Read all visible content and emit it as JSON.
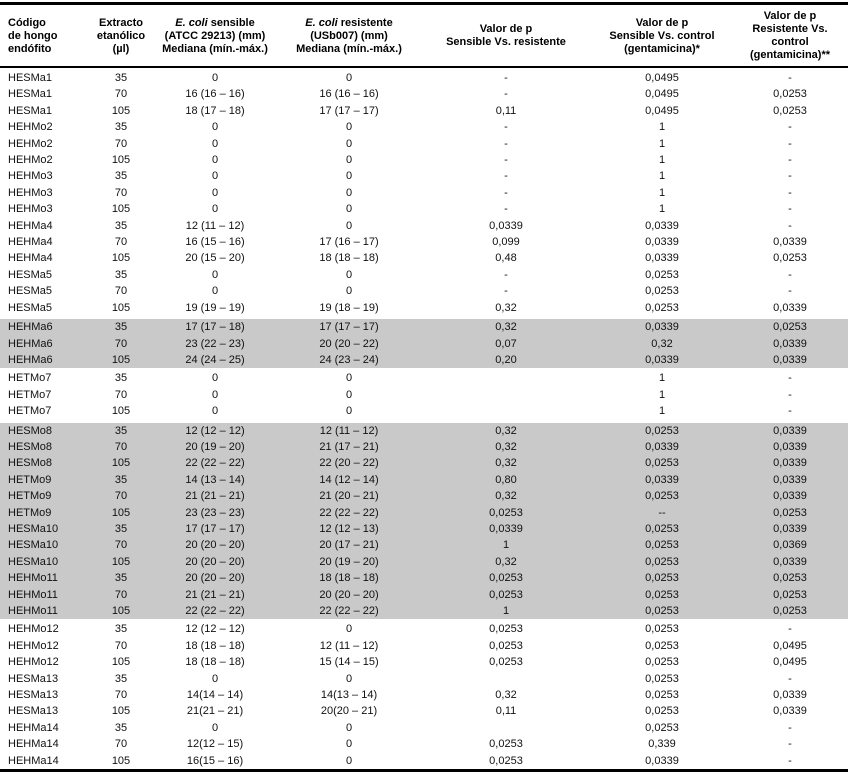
{
  "colors": {
    "shaded_row": "#c9c9c9",
    "border": "#000000",
    "text": "#000000"
  },
  "table": {
    "header": {
      "col1": {
        "line1": "Código",
        "line2": "de hongo",
        "line3": "endófito"
      },
      "col2": {
        "line1": "Extracto",
        "line2": "etanólico (µl)"
      },
      "col3": {
        "italic": "E. coli",
        "rest": " sensible",
        "line2": "(ATCC 29213) (mm)",
        "line3": "Mediana (mín.-máx.)"
      },
      "col4": {
        "italic": "E. coli",
        "rest": " resistente",
        "line2": "(USb007) (mm)",
        "line3": "Mediana (mín.-máx.)"
      },
      "col5": {
        "line1": "Valor de p",
        "line2": "Sensible Vs. resistente"
      },
      "col6": {
        "line1": "Valor de p",
        "line2": "Sensible Vs. control",
        "line3": "(gentamicina)*"
      },
      "col7": {
        "line1": "Valor de p",
        "line2": "Resistente Vs. control",
        "line3": "(gentamicina)**"
      }
    },
    "rows": [
      {
        "cells": [
          "HESMa1",
          "35",
          "0",
          "0",
          "-",
          "0,0495",
          "-"
        ],
        "shaded": false
      },
      {
        "cells": [
          "HESMa1",
          "70",
          "16 (16 – 16)",
          "16 (16 – 16)",
          "-",
          "0,0495",
          "0,0253"
        ],
        "shaded": false
      },
      {
        "cells": [
          "HESMa1",
          "105",
          "18 (17 – 18)",
          "17 (17 – 17)",
          "0,11",
          "0,0495",
          "0,0253"
        ],
        "shaded": false
      },
      {
        "cells": [
          "HEHMo2",
          "35",
          "0",
          "0",
          "-",
          "1",
          "-"
        ],
        "shaded": false
      },
      {
        "cells": [
          "HEHMo2",
          "70",
          "0",
          "0",
          "-",
          "1",
          "-"
        ],
        "shaded": false
      },
      {
        "cells": [
          "HEHMo2",
          "105",
          "0",
          "0",
          "-",
          "1",
          "-"
        ],
        "shaded": false
      },
      {
        "cells": [
          "HEHMo3",
          "35",
          "0",
          "0",
          "-",
          "1",
          "-"
        ],
        "shaded": false
      },
      {
        "cells": [
          "HEHMo3",
          "70",
          "0",
          "0",
          "-",
          "1",
          "-"
        ],
        "shaded": false
      },
      {
        "cells": [
          "HEHMo3",
          "105",
          "0",
          "0",
          "-",
          "1",
          "-"
        ],
        "shaded": false
      },
      {
        "cells": [
          "HEHMa4",
          "35",
          "12 (11 – 12)",
          "0",
          "0,0339",
          "0,0339",
          "-"
        ],
        "shaded": false
      },
      {
        "cells": [
          "HEHMa4",
          "70",
          "16 (15 – 16)",
          "17 (16 – 17)",
          "0,099",
          "0,0339",
          "0,0339"
        ],
        "shaded": false
      },
      {
        "cells": [
          "HEHMa4",
          "105",
          "20 (15 – 20)",
          "18 (18 – 18)",
          "0,48",
          "0,0339",
          "0,0253"
        ],
        "shaded": false
      },
      {
        "cells": [
          "HESMa5",
          "35",
          "0",
          "0",
          "-",
          "0,0253",
          "-"
        ],
        "shaded": false
      },
      {
        "cells": [
          "HESMa5",
          "70",
          "0",
          "0",
          "-",
          "0,0253",
          "-"
        ],
        "shaded": false
      },
      {
        "cells": [
          "HESMa5",
          "105",
          "19 (19 – 19)",
          "19 (18 – 19)",
          "0,32",
          "0,0253",
          "0,0339"
        ],
        "shaded": false
      },
      {
        "cells": [
          "HEHMa6",
          "35",
          "17 (17 – 18)",
          "17 (17 – 17)",
          "0,32",
          "0,0339",
          "0,0253"
        ],
        "shaded": true
      },
      {
        "cells": [
          "HEHMa6",
          "70",
          "23 (22 – 23)",
          "20 (20 – 22)",
          "0,07",
          "0,32",
          "0,0339"
        ],
        "shaded": true
      },
      {
        "cells": [
          "HEHMa6",
          "105",
          "24 (24 – 25)",
          "24 (23 – 24)",
          "0,20",
          "0,0339",
          "0,0339"
        ],
        "shaded": true
      },
      {
        "cells": [
          "HETMo7",
          "35",
          "0",
          "0",
          "",
          "1",
          "-"
        ],
        "shaded": false
      },
      {
        "cells": [
          "HETMo7",
          "70",
          "0",
          "0",
          "",
          "1",
          "-"
        ],
        "shaded": false
      },
      {
        "cells": [
          "HETMo7",
          "105",
          "0",
          "0",
          "",
          "1",
          "-"
        ],
        "shaded": false
      },
      {
        "cells": [
          "HESMo8",
          "35",
          "12 (12 – 12)",
          "12 (11 – 12)",
          "0,32",
          "0,0253",
          "0,0339"
        ],
        "shaded": true
      },
      {
        "cells": [
          "HESMo8",
          "70",
          "20 (19 – 20)",
          "21 (17 – 21)",
          "0,32",
          "0,0339",
          "0,0339"
        ],
        "shaded": true
      },
      {
        "cells": [
          "HESMo8",
          "105",
          "22 (22 – 22)",
          "22 (20 – 22)",
          "0,32",
          "0,0253",
          "0,0339"
        ],
        "shaded": true
      },
      {
        "cells": [
          "HETMo9",
          "35",
          "14 (13 – 14)",
          "14 (12 – 14)",
          "0,80",
          "0,0339",
          "0,0339"
        ],
        "shaded": true
      },
      {
        "cells": [
          "HETMo9",
          "70",
          "21 (21 – 21)",
          "21 (20 – 21)",
          "0,32",
          "0,0253",
          "0,0339"
        ],
        "shaded": true
      },
      {
        "cells": [
          "HETMo9",
          "105",
          "23 (23 – 23)",
          "22 (22 – 22)",
          "0,0253",
          "--",
          "0,0253"
        ],
        "shaded": true
      },
      {
        "cells": [
          "HESMa10",
          "35",
          "17 (17 – 17)",
          "12 (12 – 13)",
          "0,0339",
          "0,0253",
          "0,0339"
        ],
        "shaded": true
      },
      {
        "cells": [
          "HESMa10",
          "70",
          "20 (20 – 20)",
          "20 (17 – 21)",
          "1",
          "0,0253",
          "0,0369"
        ],
        "shaded": true
      },
      {
        "cells": [
          "HESMa10",
          "105",
          "20 (20 – 20)",
          "20 (19 – 20)",
          "0,32",
          "0,0253",
          "0,0339"
        ],
        "shaded": true
      },
      {
        "cells": [
          "HEHMo11",
          "35",
          "20 (20 – 20)",
          "18 (18 – 18)",
          "0,0253",
          "0,0253",
          "0,0253"
        ],
        "shaded": true
      },
      {
        "cells": [
          "HEHMo11",
          "70",
          "21 (21 – 21)",
          "20 (20 – 20)",
          "0,0253",
          "0,0253",
          "0,0253"
        ],
        "shaded": true
      },
      {
        "cells": [
          "HEHMo11",
          "105",
          "22 (22 – 22)",
          "22 (22 – 22)",
          "1",
          "0,0253",
          "0,0253"
        ],
        "shaded": true
      },
      {
        "cells": [
          "HEHMo12",
          "35",
          "12 (12 – 12)",
          "0",
          "0,0253",
          "0,0253",
          "-"
        ],
        "shaded": false
      },
      {
        "cells": [
          "HEHMo12",
          "70",
          "18 (18 – 18)",
          "12 (11 – 12)",
          "0,0253",
          "0,0253",
          "0,0495"
        ],
        "shaded": false
      },
      {
        "cells": [
          "HEHMo12",
          "105",
          "18 (18 – 18)",
          "15 (14 – 15)",
          "0,0253",
          "0,0253",
          "0,0495"
        ],
        "shaded": false
      },
      {
        "cells": [
          "HESMa13",
          "35",
          "0",
          "0",
          "",
          "0,0253",
          "-"
        ],
        "shaded": false
      },
      {
        "cells": [
          "HESMa13",
          "70",
          "14(14 – 14)",
          "14(13 – 14)",
          "0,32",
          "0,0253",
          "0,0339"
        ],
        "shaded": false
      },
      {
        "cells": [
          "HESMa13",
          "105",
          "21(21 – 21)",
          "20(20 – 21)",
          "0,11",
          "0,0253",
          "0,0339"
        ],
        "shaded": false
      },
      {
        "cells": [
          "HEHMa14",
          "35",
          "0",
          "0",
          "",
          "0,0253",
          "-"
        ],
        "shaded": false
      },
      {
        "cells": [
          "HEHMa14",
          "70",
          "12(12 – 15)",
          "0",
          "0,0253",
          "0,339",
          "-"
        ],
        "shaded": false
      },
      {
        "cells": [
          "HEHMa14",
          "105",
          "16(15 – 16)",
          "0",
          "0,0253",
          "0,0339",
          "-"
        ],
        "shaded": false
      }
    ]
  }
}
